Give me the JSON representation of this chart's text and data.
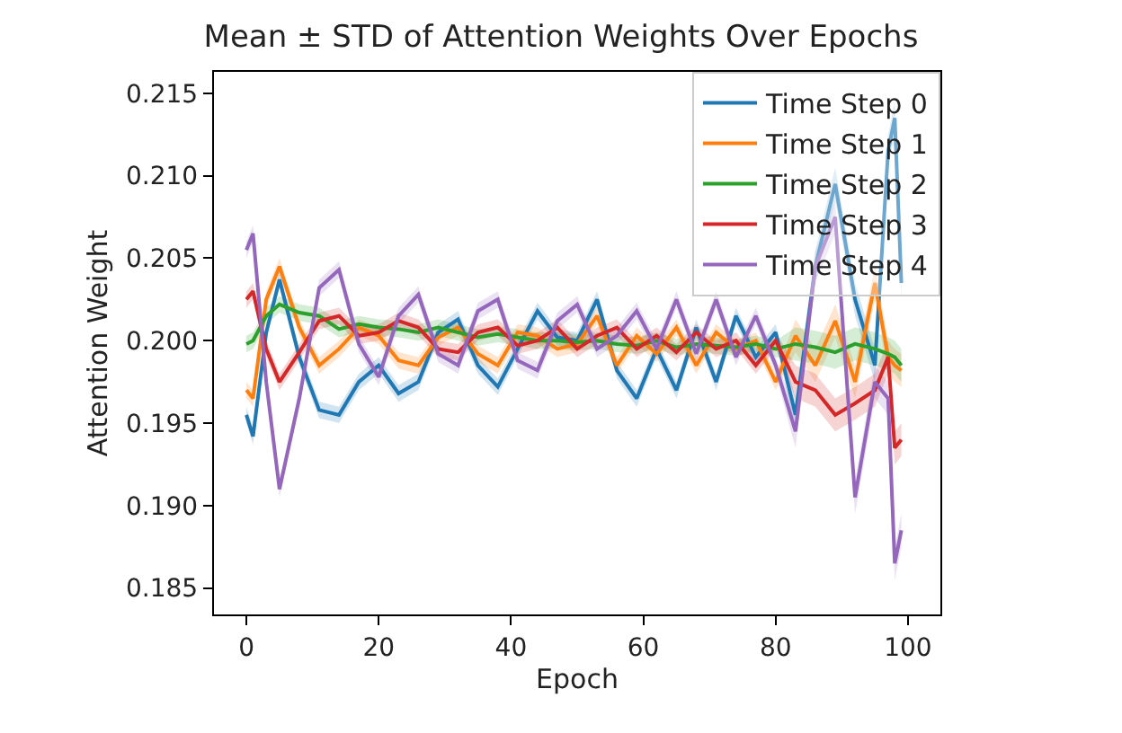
{
  "chart_data": {
    "type": "line",
    "title": "Mean ± STD of Attention Weights Over Epochs",
    "xlabel": "Epoch",
    "ylabel": "Attention Weight",
    "x": [
      0,
      1,
      3,
      5,
      8,
      11,
      14,
      17,
      20,
      23,
      26,
      29,
      32,
      35,
      38,
      41,
      44,
      47,
      50,
      53,
      56,
      59,
      62,
      65,
      68,
      71,
      74,
      77,
      80,
      83,
      86,
      89,
      92,
      95,
      97,
      98,
      99
    ],
    "xlim": [
      -4.9,
      104.9
    ],
    "xticks": [
      0,
      20,
      40,
      60,
      80,
      100
    ],
    "ylim": [
      0.1834,
      0.2163
    ],
    "yticks": [
      0.185,
      {
        "value": 0.19,
        "label": "0.190"
      },
      0.195,
      {
        "value": 0.2,
        "label": "0.200"
      },
      0.205,
      {
        "value": 0.21,
        "label": "0.210"
      },
      0.215
    ],
    "legend": "top right",
    "line_style": "solid",
    "series": [
      {
        "name": "Time Step 0",
        "color": "#1f77b4",
        "values": [
          0.1955,
          0.1942,
          0.2005,
          0.2037,
          0.199,
          0.1958,
          0.1955,
          0.1975,
          0.1985,
          0.1968,
          0.1975,
          0.2005,
          0.2013,
          0.1985,
          0.1972,
          0.1995,
          0.2018,
          0.2002,
          0.2,
          0.2025,
          0.1982,
          0.1965,
          0.1995,
          0.197,
          0.2008,
          0.1975,
          0.2015,
          0.199,
          0.2005,
          0.1955,
          0.2045,
          0.2095,
          0.2025,
          0.1985,
          0.2115,
          0.2135,
          0.2035
        ],
        "lower": [
          0.195,
          0.1937,
          0.2,
          0.2032,
          0.1985,
          0.1953,
          0.195,
          0.197,
          0.198,
          0.1963,
          0.197,
          0.2,
          0.2008,
          0.198,
          0.1967,
          0.199,
          0.2013,
          0.1997,
          0.1995,
          0.202,
          0.1977,
          0.196,
          0.199,
          0.1965,
          0.2003,
          0.197,
          0.201,
          0.1985,
          0.2,
          0.1945,
          0.2035,
          0.2085,
          0.2015,
          0.1975,
          0.2105,
          0.2125,
          0.2025
        ],
        "upper": [
          0.196,
          0.1947,
          0.201,
          0.2042,
          0.1995,
          0.1963,
          0.196,
          0.198,
          0.199,
          0.1973,
          0.198,
          0.201,
          0.2018,
          0.199,
          0.1977,
          0.2,
          0.2023,
          0.2007,
          0.2005,
          0.203,
          0.1987,
          0.197,
          0.2,
          0.1975,
          0.2013,
          0.198,
          0.202,
          0.1995,
          0.201,
          0.1965,
          0.2055,
          0.2105,
          0.2035,
          0.1995,
          0.2125,
          0.2145,
          0.2045
        ]
      },
      {
        "name": "Time Step 1",
        "color": "#ff7f0e",
        "values": [
          0.197,
          0.1965,
          0.2025,
          0.2045,
          0.2008,
          0.1985,
          0.1995,
          0.2008,
          0.2003,
          0.1988,
          0.1985,
          0.2002,
          0.2008,
          0.1992,
          0.1985,
          0.2005,
          0.2003,
          0.1995,
          0.1998,
          0.2015,
          0.1985,
          0.2003,
          0.1992,
          0.2008,
          0.1985,
          0.2005,
          0.1995,
          0.2,
          0.1975,
          0.2003,
          0.1985,
          0.2012,
          0.1975,
          0.2035,
          0.199,
          0.1985,
          0.1982
        ],
        "lower": [
          0.1965,
          0.196,
          0.202,
          0.204,
          0.2003,
          0.198,
          0.199,
          0.2003,
          0.1998,
          0.1983,
          0.198,
          0.1997,
          0.2003,
          0.1987,
          0.198,
          0.2,
          0.1998,
          0.199,
          0.1993,
          0.201,
          0.198,
          0.1998,
          0.1987,
          0.2003,
          0.198,
          0.2,
          0.199,
          0.1995,
          0.197,
          0.1993,
          0.1975,
          0.2002,
          0.1965,
          0.2025,
          0.198,
          0.1975,
          0.1972
        ],
        "upper": [
          0.1975,
          0.197,
          0.203,
          0.205,
          0.2013,
          0.199,
          0.2,
          0.2013,
          0.2008,
          0.1993,
          0.199,
          0.2007,
          0.2013,
          0.1997,
          0.199,
          0.201,
          0.2008,
          0.2,
          0.2003,
          0.202,
          0.199,
          0.2008,
          0.1997,
          0.2013,
          0.199,
          0.201,
          0.2,
          0.2005,
          0.198,
          0.2013,
          0.1995,
          0.2022,
          0.1985,
          0.2045,
          0.2,
          0.1995,
          0.1992
        ]
      },
      {
        "name": "Time Step 2",
        "color": "#2ca02c",
        "values": [
          0.1998,
          0.2,
          0.2015,
          0.2022,
          0.2017,
          0.2015,
          0.2007,
          0.201,
          0.2008,
          0.2007,
          0.2005,
          0.2008,
          0.2005,
          0.2002,
          0.2004,
          0.2002,
          0.2,
          0.2,
          0.1999,
          0.2,
          0.1998,
          0.1997,
          0.2,
          0.1996,
          0.1998,
          0.1997,
          0.1996,
          0.1998,
          0.1995,
          0.1998,
          0.1996,
          0.1993,
          0.1998,
          0.1995,
          0.1992,
          0.199,
          0.1985
        ],
        "lower": [
          0.1993,
          0.1995,
          0.201,
          0.2017,
          0.2012,
          0.201,
          0.2002,
          0.2005,
          0.2003,
          0.2002,
          0.2,
          0.2003,
          0.2,
          0.1997,
          0.1999,
          0.1997,
          0.1995,
          0.1995,
          0.1994,
          0.1995,
          0.1993,
          0.1992,
          0.1995,
          0.1991,
          0.1993,
          0.1992,
          0.1991,
          0.1993,
          0.199,
          0.1988,
          0.1986,
          0.1983,
          0.1988,
          0.1985,
          0.1982,
          0.198,
          0.1975
        ],
        "upper": [
          0.2003,
          0.2005,
          0.202,
          0.2027,
          0.2022,
          0.202,
          0.2012,
          0.2015,
          0.2013,
          0.2012,
          0.201,
          0.2013,
          0.201,
          0.2007,
          0.2009,
          0.2007,
          0.2005,
          0.2005,
          0.2004,
          0.2005,
          0.2003,
          0.2002,
          0.2005,
          0.2001,
          0.2003,
          0.2002,
          0.2001,
          0.2003,
          0.2,
          0.2008,
          0.2006,
          0.2003,
          0.2008,
          0.2005,
          0.2002,
          0.2,
          0.1995
        ]
      },
      {
        "name": "Time Step 3",
        "color": "#d62728",
        "values": [
          0.2025,
          0.203,
          0.1995,
          0.1975,
          0.1993,
          0.2012,
          0.2015,
          0.2003,
          0.2005,
          0.2012,
          0.2008,
          0.1995,
          0.1993,
          0.2005,
          0.2008,
          0.1997,
          0.2,
          0.2008,
          0.1995,
          0.2003,
          0.2008,
          0.1995,
          0.2003,
          0.1993,
          0.2005,
          0.1995,
          0.2,
          0.1985,
          0.2,
          0.1975,
          0.197,
          0.1955,
          0.1962,
          0.197,
          0.199,
          0.1935,
          0.194
        ],
        "lower": [
          0.202,
          0.2025,
          0.199,
          0.197,
          0.1988,
          0.2007,
          0.201,
          0.1998,
          0.2,
          0.2007,
          0.2003,
          0.199,
          0.1988,
          0.2,
          0.2003,
          0.1992,
          0.1995,
          0.2003,
          0.199,
          0.1998,
          0.2003,
          0.199,
          0.1998,
          0.1988,
          0.2,
          0.199,
          0.1995,
          0.198,
          0.1995,
          0.1965,
          0.196,
          0.1945,
          0.1952,
          0.196,
          0.198,
          0.1925,
          0.193
        ],
        "upper": [
          0.203,
          0.2035,
          0.2,
          0.198,
          0.1998,
          0.2017,
          0.202,
          0.2008,
          0.201,
          0.2017,
          0.2013,
          0.2,
          0.1998,
          0.201,
          0.2013,
          0.2002,
          0.2005,
          0.2013,
          0.2,
          0.2008,
          0.2013,
          0.2,
          0.2008,
          0.1998,
          0.201,
          0.2,
          0.2005,
          0.199,
          0.2005,
          0.1985,
          0.198,
          0.1965,
          0.1972,
          0.198,
          0.2,
          0.1945,
          0.195
        ]
      },
      {
        "name": "Time Step 4",
        "color": "#9467bd",
        "values": [
          0.2055,
          0.2065,
          0.1975,
          0.191,
          0.1965,
          0.2032,
          0.2043,
          0.1998,
          0.1978,
          0.2015,
          0.2028,
          0.1992,
          0.1985,
          0.2018,
          0.2025,
          0.1988,
          0.1982,
          0.2012,
          0.2022,
          0.1995,
          0.2003,
          0.2018,
          0.1995,
          0.2025,
          0.1992,
          0.2025,
          0.199,
          0.2015,
          0.1985,
          0.1945,
          0.2045,
          0.2075,
          0.1905,
          0.1975,
          0.1965,
          0.1865,
          0.1885
        ],
        "lower": [
          0.205,
          0.206,
          0.197,
          0.1905,
          0.196,
          0.2027,
          0.2038,
          0.1993,
          0.1973,
          0.201,
          0.2023,
          0.1987,
          0.198,
          0.2013,
          0.202,
          0.1983,
          0.1977,
          0.2007,
          0.2017,
          0.199,
          0.1998,
          0.2013,
          0.199,
          0.202,
          0.1987,
          0.202,
          0.1985,
          0.201,
          0.198,
          0.1935,
          0.2035,
          0.2065,
          0.1895,
          0.1965,
          0.1955,
          0.1855,
          0.1875
        ],
        "upper": [
          0.206,
          0.207,
          0.198,
          0.1915,
          0.197,
          0.2037,
          0.2048,
          0.2003,
          0.1983,
          0.202,
          0.2033,
          0.1997,
          0.199,
          0.2023,
          0.203,
          0.1993,
          0.1987,
          0.2017,
          0.2027,
          0.2,
          0.2008,
          0.2023,
          0.2,
          0.203,
          0.1997,
          0.203,
          0.1995,
          0.202,
          0.199,
          0.1955,
          0.2055,
          0.2085,
          0.1915,
          0.1985,
          0.1975,
          0.1875,
          0.1895
        ]
      }
    ]
  }
}
